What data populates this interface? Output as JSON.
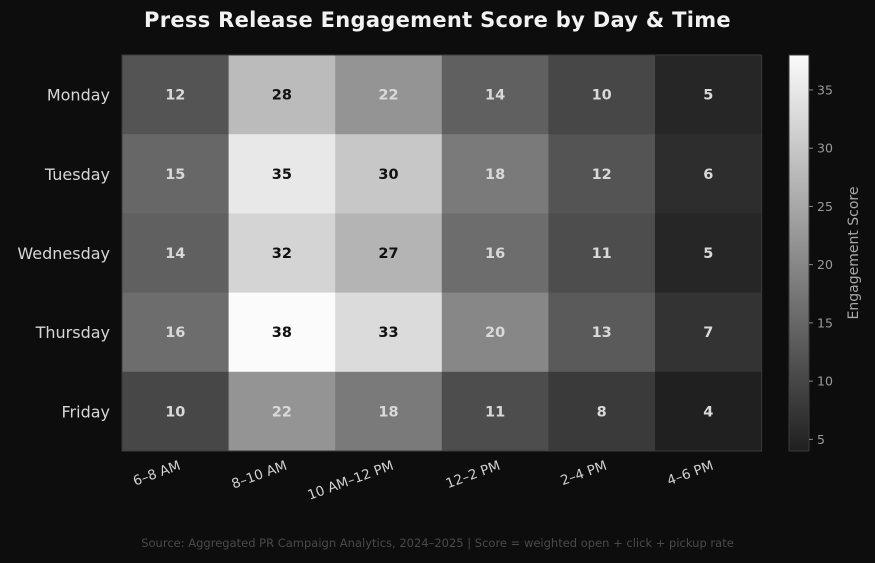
{
  "chart_data": {
    "type": "heatmap",
    "title": "Press Release Engagement Score by Day & Time",
    "rows": [
      "Monday",
      "Tuesday",
      "Wednesday",
      "Thursday",
      "Friday"
    ],
    "columns": [
      "6–8 AM",
      "8–10 AM",
      "10 AM–12 PM",
      "12–2 PM",
      "2–4 PM",
      "4–6 PM"
    ],
    "values": [
      [
        12,
        28,
        22,
        14,
        10,
        5
      ],
      [
        15,
        35,
        30,
        18,
        12,
        6
      ],
      [
        14,
        32,
        27,
        16,
        11,
        5
      ],
      [
        16,
        38,
        33,
        20,
        13,
        7
      ],
      [
        10,
        22,
        18,
        11,
        8,
        4
      ]
    ],
    "colorbar": {
      "label": "Engagement Score",
      "range": [
        4,
        38
      ],
      "ticks": [
        5,
        10,
        15,
        20,
        25,
        30,
        35
      ],
      "colormap": "greys (dark to white)"
    },
    "annotations": "value printed in each cell"
  },
  "source_note": "Source: Aggregated PR Campaign Analytics, 2024–2025 | Score = weighted open + click + pickup rate"
}
